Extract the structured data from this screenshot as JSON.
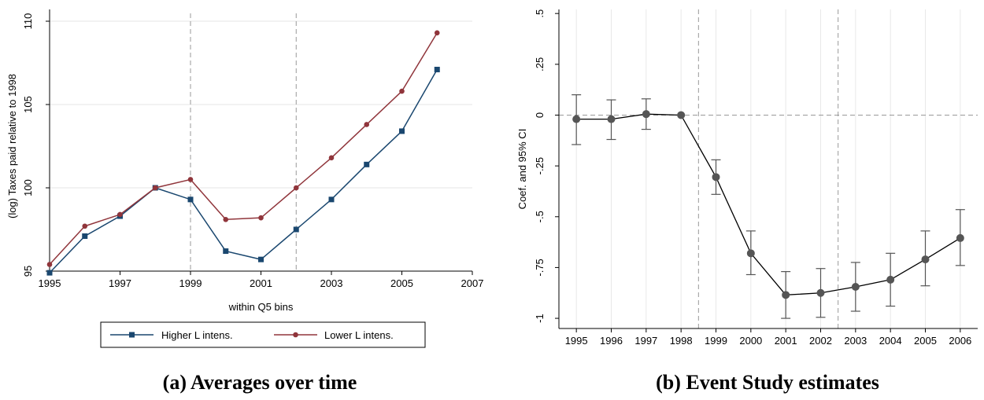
{
  "chart_data": [
    {
      "type": "line",
      "x": [
        1995,
        1996,
        1997,
        1998,
        1999,
        2000,
        2001,
        2002,
        2003,
        2004,
        2005,
        2006
      ],
      "series": [
        {
          "name": "Higher L intens.",
          "values": [
            94.9,
            97.1,
            98.3,
            100.0,
            99.3,
            96.2,
            95.7,
            97.5,
            99.3,
            101.4,
            103.4,
            107.1
          ],
          "color": "#1a476f",
          "marker": "square"
        },
        {
          "name": "Lower L intens.",
          "values": [
            95.4,
            97.7,
            98.4,
            100.0,
            100.5,
            98.1,
            98.2,
            100.0,
            101.8,
            103.8,
            105.8,
            109.3
          ],
          "color": "#90353b",
          "marker": "circle"
        }
      ],
      "xlabel": "within Q5 bins",
      "ylabel": "(log) Taxes paid relative to 1998",
      "xticks": [
        1995,
        1997,
        1999,
        2001,
        2003,
        2005,
        2007
      ],
      "yticks": [
        95,
        100,
        105,
        110
      ],
      "xlim": [
        1995,
        2007
      ],
      "ylim": [
        95,
        110
      ],
      "vlines": [
        1999,
        2002
      ],
      "grid": "horizontal",
      "legend": "bottom",
      "caption": "(a) Averages over time"
    },
    {
      "type": "scatter",
      "categories": [
        "1995",
        "1996",
        "1997",
        "1998",
        "1999",
        "2000",
        "2001",
        "2002",
        "2003",
        "2004",
        "2005",
        "2006"
      ],
      "values": [
        -0.02,
        -0.02,
        0.005,
        0.0,
        -0.305,
        -0.68,
        -0.885,
        -0.875,
        -0.845,
        -0.81,
        -0.71,
        -0.605
      ],
      "ci_low": [
        -0.145,
        -0.12,
        -0.07,
        0.0,
        -0.39,
        -0.785,
        -1.0,
        -0.995,
        -0.965,
        -0.94,
        -0.84,
        -0.74
      ],
      "ci_high": [
        0.1,
        0.075,
        0.08,
        0.0,
        -0.22,
        -0.57,
        -0.77,
        -0.755,
        -0.725,
        -0.68,
        -0.57,
        -0.465
      ],
      "connected": true,
      "color": "#555555",
      "ylabel": "Coef. and 95% CI",
      "xlabel": "",
      "ytick_values": [
        0.5,
        0.25,
        0,
        -0.25,
        -0.5,
        -0.75,
        -1
      ],
      "ytick_labels": [
        ".5",
        ".25",
        "0",
        "-.25",
        "-.5",
        "-.75",
        "-1"
      ],
      "ylim": [
        -1.05,
        0.52
      ],
      "vlines_after": [
        "1998",
        "2002"
      ],
      "hline": 0,
      "grid": "vertical",
      "caption": "(b) Event Study estimates"
    }
  ]
}
